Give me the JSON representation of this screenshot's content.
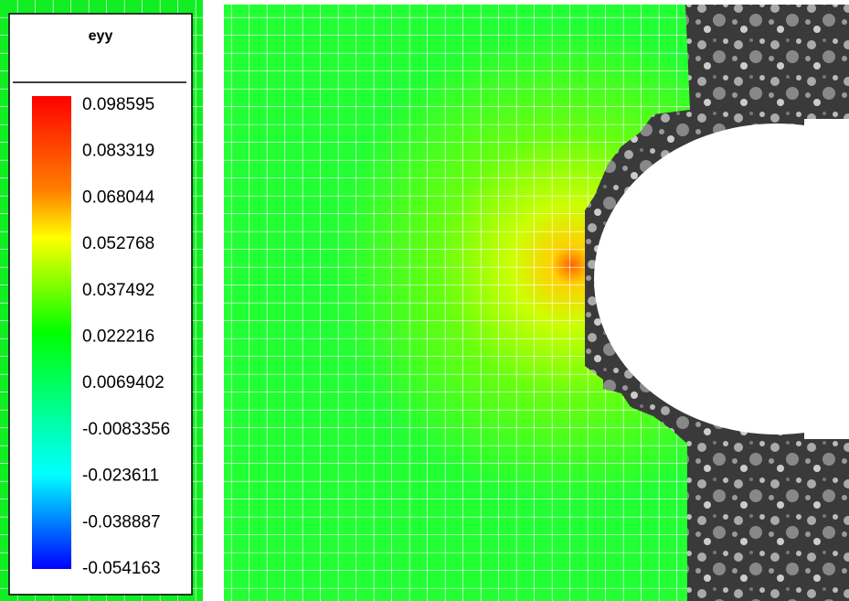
{
  "legend": {
    "title": "eyy",
    "ticks": [
      0.098595,
      0.083319,
      0.068044,
      0.052768,
      0.037492,
      0.022216,
      0.0069402,
      -0.0083356,
      -0.023611,
      -0.038887,
      -0.054163
    ]
  }
}
